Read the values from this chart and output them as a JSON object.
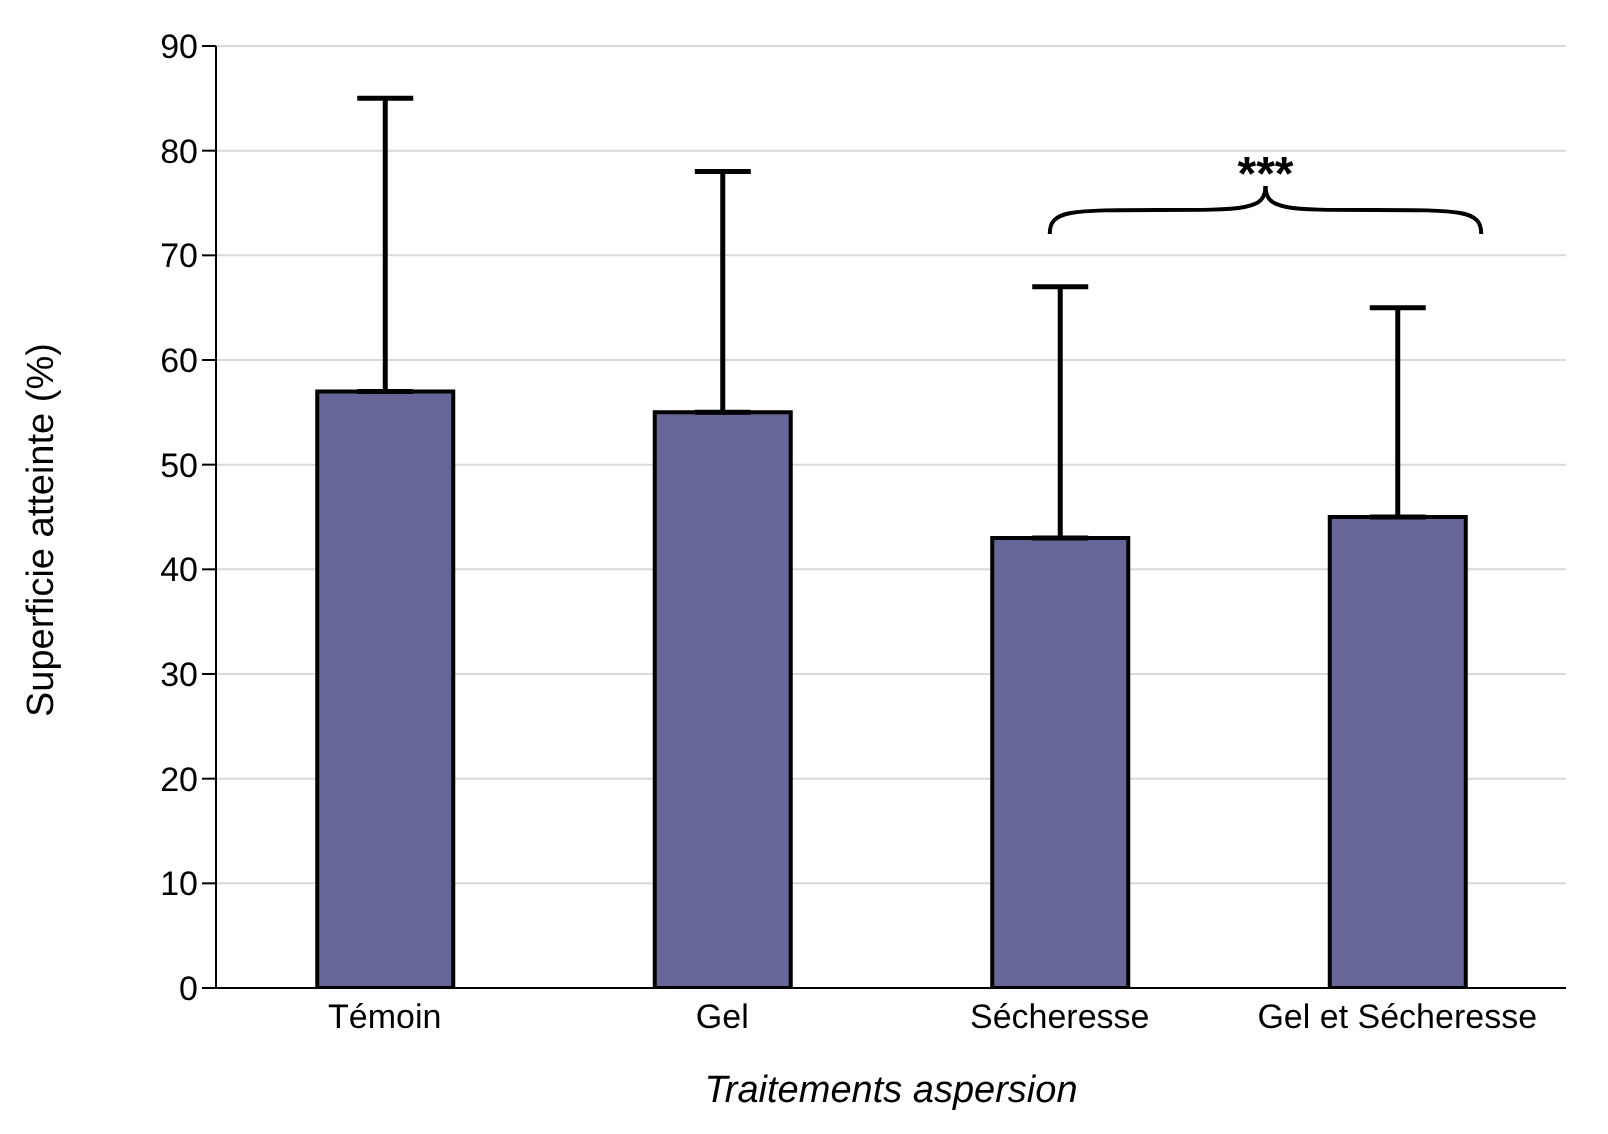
{
  "chart_data": {
    "type": "bar",
    "xlabel": "Traitements aspersion",
    "ylabel": "Superficie atteinte (%)",
    "categories": [
      "Témoin",
      "Gel",
      "Sécheresse",
      "Gel et Sécheresse"
    ],
    "values": [
      57,
      55,
      43,
      45
    ],
    "color": "#666699",
    "errors": [
      [
        57,
        85
      ],
      [
        55,
        78
      ],
      [
        43,
        67
      ],
      [
        45,
        65
      ]
    ],
    "ylim": [
      0,
      90
    ],
    "yticks": [
      0,
      10,
      20,
      30,
      40,
      50,
      60,
      70,
      80,
      90
    ],
    "grid": "y",
    "annotations": [
      "***"
    ]
  }
}
